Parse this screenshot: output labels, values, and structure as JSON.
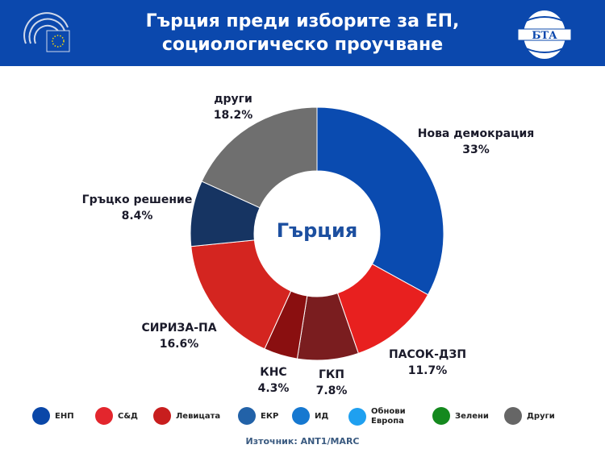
{
  "header": {
    "title_line1": "Гърция преди изборите за ЕП,",
    "title_line2": "социологическо проучване",
    "logo_text": "БТА"
  },
  "chart_data": {
    "type": "pie",
    "subtype": "donut",
    "center_label": "Гърция",
    "title": "Гърция преди изборите за ЕП, социологическо проучване",
    "slices": [
      {
        "label": "Нова демокрация",
        "value": 33,
        "display": "33%",
        "color": "#0a4bb0"
      },
      {
        "label": "ПАСОК-ДЗП",
        "value": 11.7,
        "display": "11.7%",
        "color": "#e8201f"
      },
      {
        "label": "ГКП",
        "value": 7.8,
        "display": "7.8%",
        "color": "#7a1d1f"
      },
      {
        "label": "КНС",
        "value": 4.3,
        "display": "4.3%",
        "color": "#8a0f10"
      },
      {
        "label": "СИРИЗА-ПА",
        "value": 16.6,
        "display": "16.6%",
        "color": "#d42520"
      },
      {
        "label": "Гръцко решение",
        "value": 8.4,
        "display": "8.4%",
        "color": "#163462"
      },
      {
        "label": "други",
        "value": 18.2,
        "display": "18.2%",
        "color": "#6f6f6f"
      }
    ]
  },
  "legend": [
    {
      "label": "ЕНП",
      "color": "#0a47a8"
    },
    {
      "label": "С&Д",
      "color": "#e3262d"
    },
    {
      "label": "Левицата",
      "color": "#c81e1e"
    },
    {
      "label": "ЕКР",
      "color": "#2262a8"
    },
    {
      "label": "ИД",
      "color": "#1678d0"
    },
    {
      "label": "Обнови Европа",
      "color": "#1fa0f0"
    },
    {
      "label": "Зелени",
      "color": "#14891e"
    },
    {
      "label": "Други",
      "color": "#666666"
    }
  ],
  "source": "Източник: ANT1/MARC"
}
